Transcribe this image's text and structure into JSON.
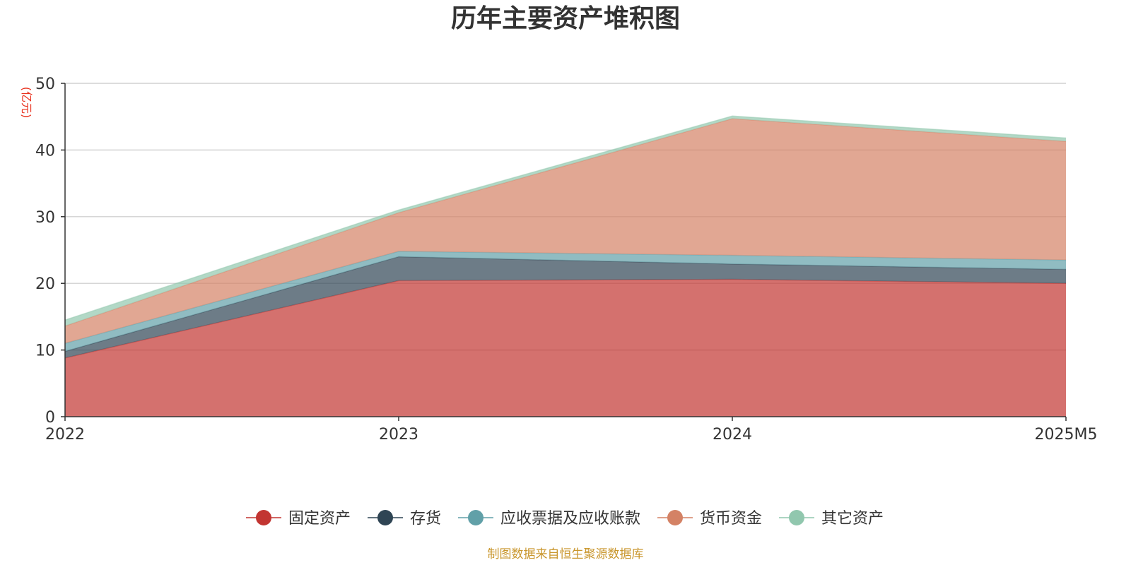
{
  "chart_data": {
    "type": "area",
    "stacked": true,
    "title": "历年主要资产堆积图",
    "ylabel": "(亿元)",
    "xlabel": "",
    "categories": [
      "2022",
      "2023",
      "2024",
      "2025M5"
    ],
    "ylim": [
      0,
      50
    ],
    "yticks": [
      0,
      10,
      20,
      30,
      40,
      50
    ],
    "grid": true,
    "legend_position": "bottom",
    "series": [
      {
        "name": "固定资产",
        "color": "#c23531",
        "values": [
          8.8,
          20.4,
          20.6,
          20.0
        ]
      },
      {
        "name": "存货",
        "color": "#2f4554",
        "values": [
          1.0,
          3.6,
          2.3,
          2.1
        ]
      },
      {
        "name": "应收票据及应收账款",
        "color": "#61a0a8",
        "values": [
          1.2,
          0.8,
          1.3,
          1.4
        ]
      },
      {
        "name": "货币资金",
        "color": "#d48265",
        "values": [
          2.6,
          5.8,
          20.5,
          17.8
        ]
      },
      {
        "name": "其它资产",
        "color": "#91c7ae",
        "values": [
          0.9,
          0.4,
          0.4,
          0.5
        ]
      }
    ],
    "source": "制图数据来自恒生聚源数据库"
  }
}
